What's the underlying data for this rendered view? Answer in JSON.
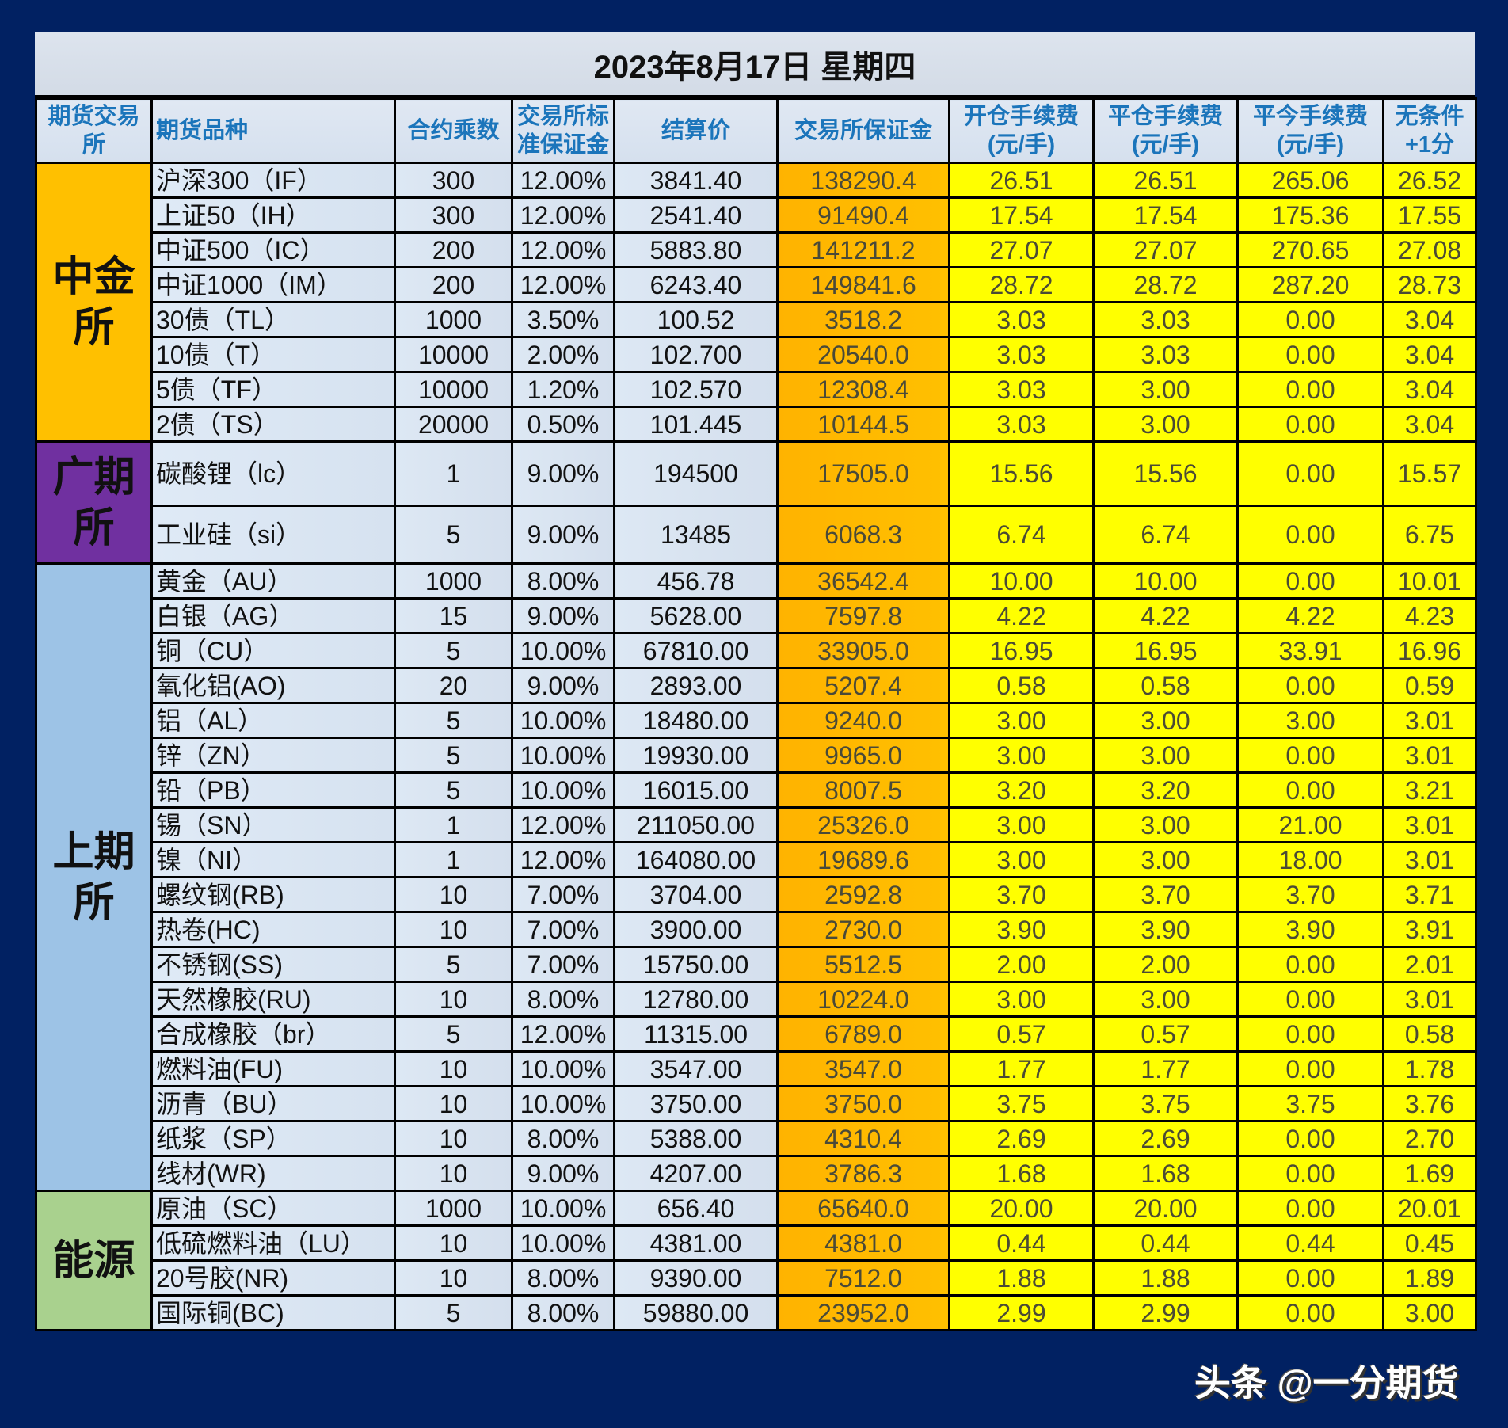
{
  "title": "2023年8月17日  星期四",
  "colors": {
    "frame": "#012162",
    "cffex": "#FFC000",
    "gfex": "#7030A0",
    "shfe": "#9DC3E6",
    "ine": "#A9D18E",
    "fee": "#FFFF00",
    "margin": "#FFB300",
    "header_text": "#1B75BB"
  },
  "headers": [
    "期货交易所",
    "期货品种",
    "合约乘数",
    "交易所标准保证金",
    "结算价",
    "交易所保证金",
    "开仓手续费(元/手)",
    "平仓手续费(元/手)",
    "平今手续费(元/手)",
    "无条件+1分"
  ],
  "header_lines": {
    "h0": [
      "期货交易",
      "所"
    ],
    "h3": [
      "交易所标",
      "准保证金"
    ],
    "h6": [
      "开仓手续费",
      "(元/手)"
    ],
    "h7": [
      "平仓手续费",
      "(元/手)"
    ],
    "h8": [
      "平今手续费",
      "(元/手)"
    ],
    "h9": [
      "无条件",
      "+1分"
    ]
  },
  "exchanges": [
    {
      "name_lines": [
        "中金",
        "所"
      ],
      "color": "#FFC000",
      "rows": [
        [
          "沪深300（IF）",
          "300",
          "12.00%",
          "3841.40",
          "138290.4",
          "26.51",
          "26.51",
          "265.06",
          "26.52"
        ],
        [
          "上证50（IH）",
          "300",
          "12.00%",
          "2541.40",
          "91490.4",
          "17.54",
          "17.54",
          "175.36",
          "17.55"
        ],
        [
          "中证500（IC）",
          "200",
          "12.00%",
          "5883.80",
          "141211.2",
          "27.07",
          "27.07",
          "270.65",
          "27.08"
        ],
        [
          "中证1000（IM）",
          "200",
          "12.00%",
          "6243.40",
          "149841.6",
          "28.72",
          "28.72",
          "287.20",
          "28.73"
        ],
        [
          "30债（TL）",
          "1000",
          "3.50%",
          "100.52",
          "3518.2",
          "3.03",
          "3.03",
          "0.00",
          "3.04"
        ],
        [
          "10债（T）",
          "10000",
          "2.00%",
          "102.700",
          "20540.0",
          "3.03",
          "3.03",
          "0.00",
          "3.04"
        ],
        [
          "5债（TF）",
          "10000",
          "1.20%",
          "102.570",
          "12308.4",
          "3.03",
          "3.00",
          "0.00",
          "3.04"
        ],
        [
          "2债（TS）",
          "20000",
          "0.50%",
          "101.445",
          "10144.5",
          "3.03",
          "3.00",
          "0.00",
          "3.04"
        ]
      ]
    },
    {
      "name_lines": [
        "广期",
        "所"
      ],
      "color": "#7030A0",
      "rows": [
        [
          "碳酸锂（lc）",
          "1",
          "9.00%",
          "194500",
          "17505.0",
          "15.56",
          "15.56",
          "0.00",
          "15.57"
        ],
        [
          "工业硅（si）",
          "5",
          "9.00%",
          "13485",
          "6068.3",
          "6.74",
          "6.74",
          "0.00",
          "6.75"
        ]
      ]
    },
    {
      "name_lines": [
        "上期",
        "所"
      ],
      "color": "#9DC3E6",
      "rows": [
        [
          "黄金（AU）",
          "1000",
          "8.00%",
          "456.78",
          "36542.4",
          "10.00",
          "10.00",
          "0.00",
          "10.01"
        ],
        [
          "白银（AG）",
          "15",
          "9.00%",
          "5628.00",
          "7597.8",
          "4.22",
          "4.22",
          "4.22",
          "4.23"
        ],
        [
          "铜（CU）",
          "5",
          "10.00%",
          "67810.00",
          "33905.0",
          "16.95",
          "16.95",
          "33.91",
          "16.96"
        ],
        [
          "氧化铝(AO)",
          "20",
          "9.00%",
          "2893.00",
          "5207.4",
          "0.58",
          "0.58",
          "0.00",
          "0.59"
        ],
        [
          "铝（AL）",
          "5",
          "10.00%",
          "18480.00",
          "9240.0",
          "3.00",
          "3.00",
          "3.00",
          "3.01"
        ],
        [
          "锌（ZN）",
          "5",
          "10.00%",
          "19930.00",
          "9965.0",
          "3.00",
          "3.00",
          "0.00",
          "3.01"
        ],
        [
          "铅（PB）",
          "5",
          "10.00%",
          "16015.00",
          "8007.5",
          "3.20",
          "3.20",
          "0.00",
          "3.21"
        ],
        [
          "锡（SN）",
          "1",
          "12.00%",
          "211050.00",
          "25326.0",
          "3.00",
          "3.00",
          "21.00",
          "3.01"
        ],
        [
          "镍（NI）",
          "1",
          "12.00%",
          "164080.00",
          "19689.6",
          "3.00",
          "3.00",
          "18.00",
          "3.01"
        ],
        [
          "螺纹钢(RB)",
          "10",
          "7.00%",
          "3704.00",
          "2592.8",
          "3.70",
          "3.70",
          "3.70",
          "3.71"
        ],
        [
          "热卷(HC)",
          "10",
          "7.00%",
          "3900.00",
          "2730.0",
          "3.90",
          "3.90",
          "3.90",
          "3.91"
        ],
        [
          "不锈钢(SS)",
          "5",
          "7.00%",
          "15750.00",
          "5512.5",
          "2.00",
          "2.00",
          "0.00",
          "2.01"
        ],
        [
          "天然橡胶(RU)",
          "10",
          "8.00%",
          "12780.00",
          "10224.0",
          "3.00",
          "3.00",
          "0.00",
          "3.01"
        ],
        [
          "合成橡胶（br）",
          "5",
          "12.00%",
          "11315.00",
          "6789.0",
          "0.57",
          "0.57",
          "0.00",
          "0.58"
        ],
        [
          "燃料油(FU)",
          "10",
          "10.00%",
          "3547.00",
          "3547.0",
          "1.77",
          "1.77",
          "0.00",
          "1.78"
        ],
        [
          "沥青（BU）",
          "10",
          "10.00%",
          "3750.00",
          "3750.0",
          "3.75",
          "3.75",
          "3.75",
          "3.76"
        ],
        [
          "纸浆（SP）",
          "10",
          "8.00%",
          "5388.00",
          "4310.4",
          "2.69",
          "2.69",
          "0.00",
          "2.70"
        ],
        [
          "线材(WR)",
          "10",
          "9.00%",
          "4207.00",
          "3786.3",
          "1.68",
          "1.68",
          "0.00",
          "1.69"
        ]
      ]
    },
    {
      "name_lines": [
        "能源"
      ],
      "color": "#A9D18E",
      "rows": [
        [
          "原油（SC）",
          "1000",
          "10.00%",
          "656.40",
          "65640.0",
          "20.00",
          "20.00",
          "0.00",
          "20.01"
        ],
        [
          "低硫燃料油（LU）",
          "10",
          "10.00%",
          "4381.00",
          "4381.0",
          "0.44",
          "0.44",
          "0.44",
          "0.45"
        ],
        [
          "20号胶(NR)",
          "10",
          "8.00%",
          "9390.00",
          "7512.0",
          "1.88",
          "1.88",
          "0.00",
          "1.89"
        ],
        [
          "国际铜(BC)",
          "5",
          "8.00%",
          "59880.00",
          "23952.0",
          "2.99",
          "2.99",
          "0.00",
          "3.00"
        ]
      ]
    }
  ],
  "watermark": "头条 @一分期货"
}
